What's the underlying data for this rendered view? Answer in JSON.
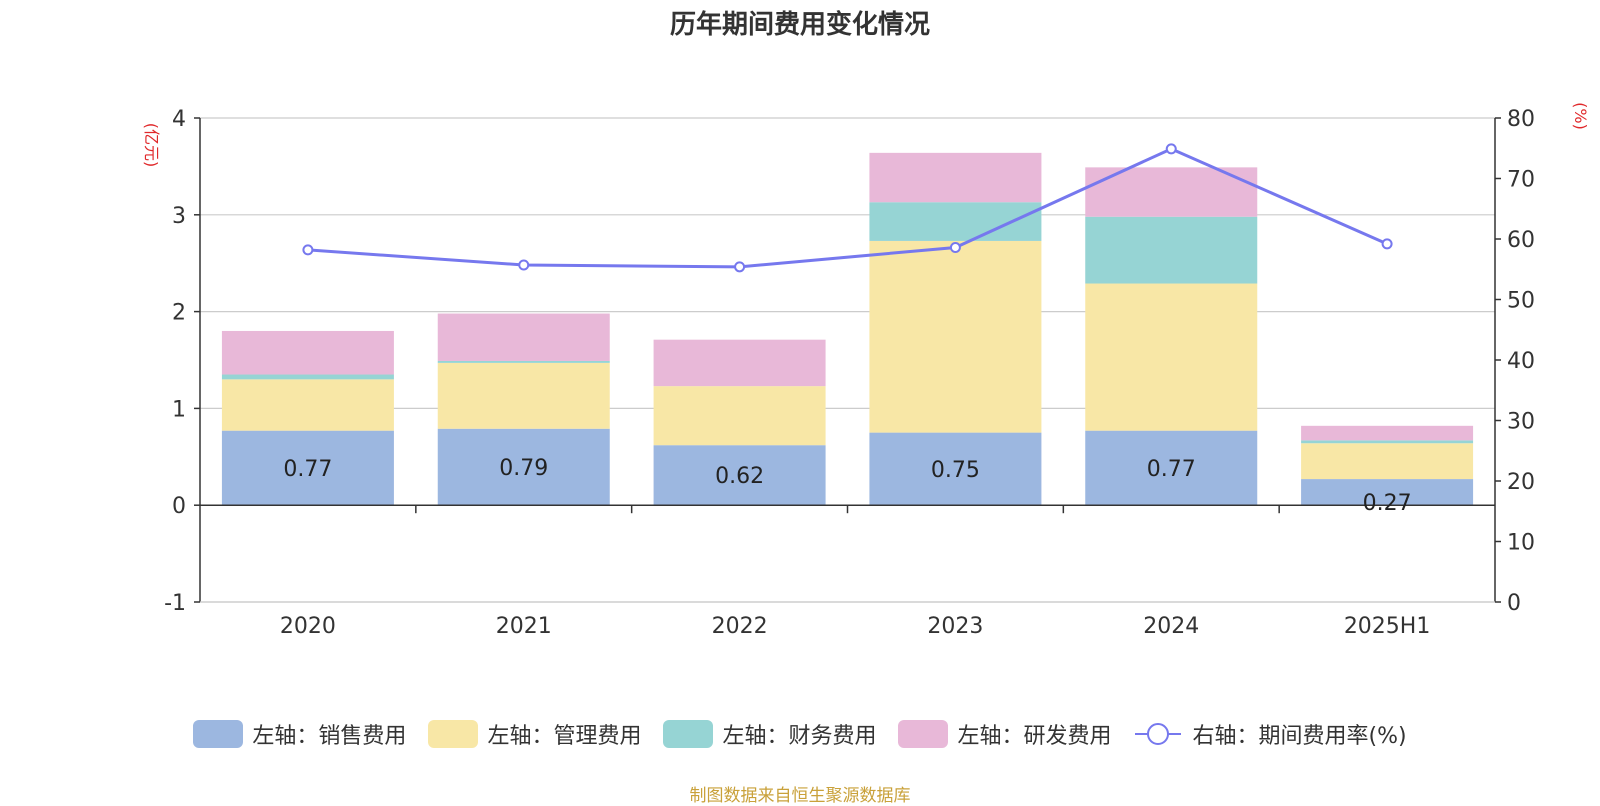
{
  "title": "历年期间费用变化情况",
  "left_axis_unit": "(亿元)",
  "right_axis_unit": "(%)",
  "source": "制图数据来自恒生聚源数据库",
  "colors": {
    "sales": "#9cb7e0",
    "admin": "#f8e7a6",
    "finance": "#96d4d4",
    "rd": "#e8b8d8",
    "rate": "#7678ee",
    "axis_unit": "#e0292b"
  },
  "legend": [
    {
      "key": "sales",
      "label": "左轴：销售费用"
    },
    {
      "key": "admin",
      "label": "左轴：管理费用"
    },
    {
      "key": "finance",
      "label": "左轴：财务费用"
    },
    {
      "key": "rd",
      "label": "左轴：研发费用"
    },
    {
      "key": "rate",
      "label": "右轴：期间费用率(%)"
    }
  ],
  "chart_data": {
    "type": "bar",
    "stacked": true,
    "title": "历年期间费用变化情况",
    "categories": [
      "2020",
      "2021",
      "2022",
      "2023",
      "2024",
      "2025H1"
    ],
    "series": [
      {
        "name": "左轴：销售费用",
        "axis": "left",
        "values": [
          0.77,
          0.79,
          0.62,
          0.75,
          0.77,
          0.27
        ],
        "data_labels": [
          "0.77",
          "0.79",
          "0.62",
          "0.75",
          "0.77",
          "0.27"
        ]
      },
      {
        "name": "左轴：管理费用",
        "axis": "left",
        "values": [
          0.53,
          0.68,
          0.61,
          1.98,
          1.52,
          0.37
        ]
      },
      {
        "name": "左轴：财务费用",
        "axis": "left",
        "values": [
          0.05,
          0.02,
          0.0,
          0.4,
          0.69,
          0.03
        ]
      },
      {
        "name": "左轴：研发费用",
        "axis": "left",
        "values": [
          0.45,
          0.49,
          0.48,
          0.51,
          0.51,
          0.15
        ]
      },
      {
        "name": "右轴：期间费用率(%)",
        "axis": "right",
        "type": "line",
        "values": [
          58.2,
          55.7,
          55.4,
          58.6,
          74.9,
          59.2
        ]
      }
    ],
    "left_axis": {
      "label": "(亿元)",
      "min": -1,
      "max": 4,
      "ticks": [
        -1,
        0,
        1,
        2,
        3,
        4
      ]
    },
    "right_axis": {
      "label": "(%)",
      "min": 0,
      "max": 80,
      "ticks": [
        0,
        10,
        20,
        30,
        40,
        50,
        60,
        70,
        80
      ]
    },
    "grid": true,
    "legend_position": "bottom"
  }
}
